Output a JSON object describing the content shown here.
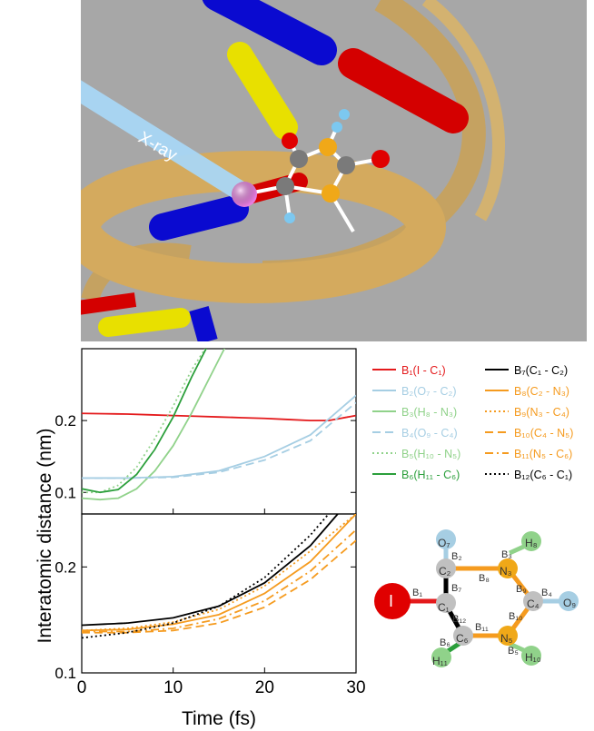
{
  "figure": {
    "xray_label": "X-ray",
    "ylabel": "Interatomic distance (nm)",
    "xlabel": "Time (fs)"
  },
  "legend": [
    {
      "label": "B₁(I  - C₁)",
      "color": "#e41a1c",
      "dash": "solid"
    },
    {
      "label": "B₇(C₁  - C₂)",
      "color": "#000000",
      "dash": "solid"
    },
    {
      "label": "B₂(O₇  - C₂)",
      "color": "#a6cee3",
      "dash": "solid"
    },
    {
      "label": "B₈(C₂  - N₃)",
      "color": "#f59b1f",
      "dash": "solid"
    },
    {
      "label": "B₃(H₈  - N₃)",
      "color": "#90d28a",
      "dash": "solid"
    },
    {
      "label": "B₉(N₃  - C₄)",
      "color": "#f59b1f",
      "dash": "dotted"
    },
    {
      "label": "B₄(O₉  - C₄)",
      "color": "#a6cee3",
      "dash": "dashed"
    },
    {
      "label": "B₁₀(C₄ - N₅)",
      "color": "#f59b1f",
      "dash": "dashed"
    },
    {
      "label": "B₅(H₁₀  - N₅)",
      "color": "#90d28a",
      "dash": "dotted"
    },
    {
      "label": "B₁₁(N₅ - C₆)",
      "color": "#f59b1f",
      "dash": "dashdot"
    },
    {
      "label": "B₆(H₁₁  - C₆)",
      "color": "#2b9f3b",
      "dash": "solid"
    },
    {
      "label": "B₁₂(C₆  - C₁)",
      "color": "#000000",
      "dash": "dotted"
    }
  ],
  "molecule": {
    "atoms": [
      "O₇",
      "H₈",
      "I",
      "O₉",
      "H₁₁",
      "H₁₀",
      "C₂",
      "N₃",
      "C₁",
      "C₄",
      "C₆",
      "N₅"
    ],
    "bonds": [
      "B₁",
      "B₂",
      "B₃",
      "B₄",
      "B₅",
      "B₆",
      "B₇",
      "B₈",
      "B₉",
      "B₁₀",
      "B₁₁",
      "B₁₂"
    ]
  },
  "chart_data": [
    {
      "type": "line",
      "xlim": [
        0,
        30
      ],
      "ylim": [
        0.07,
        0.3
      ],
      "yticks": [
        "0.1",
        "0.2"
      ],
      "series": [
        {
          "name": "B₁(I - C₁)",
          "x": [
            0,
            5,
            10,
            15,
            20,
            25,
            27,
            30
          ],
          "y": [
            0.21,
            0.209,
            0.207,
            0.205,
            0.203,
            0.2,
            0.2,
            0.207
          ]
        },
        {
          "name": "B₂(O₇ - C₂)",
          "x": [
            0,
            5,
            10,
            15,
            20,
            25,
            30
          ],
          "y": [
            0.12,
            0.12,
            0.122,
            0.13,
            0.15,
            0.18,
            0.235
          ]
        },
        {
          "name": "B₃(H₈ - N₃)",
          "x": [
            0,
            2,
            4,
            6,
            8,
            10,
            12,
            14,
            16
          ],
          "y": [
            0.092,
            0.09,
            0.092,
            0.105,
            0.13,
            0.165,
            0.21,
            0.26,
            0.31
          ]
        },
        {
          "name": "B₄(O₉ - C₄)",
          "x": [
            0,
            5,
            10,
            15,
            20,
            25,
            30
          ],
          "y": [
            0.12,
            0.12,
            0.121,
            0.128,
            0.145,
            0.172,
            0.225
          ]
        },
        {
          "name": "B₅(H₁₀ - N₅)",
          "x": [
            0,
            2,
            4,
            6,
            8,
            10,
            12,
            14
          ],
          "y": [
            0.1,
            0.1,
            0.11,
            0.135,
            0.175,
            0.22,
            0.27,
            0.31
          ]
        },
        {
          "name": "B₆(H₁₁ - C₆)",
          "x": [
            0,
            2,
            4,
            6,
            8,
            10,
            12,
            14
          ],
          "y": [
            0.105,
            0.1,
            0.104,
            0.125,
            0.16,
            0.205,
            0.26,
            0.31
          ]
        }
      ]
    },
    {
      "type": "line",
      "xlim": [
        0,
        30
      ],
      "ylim": [
        0.1,
        0.25
      ],
      "yticks": [
        "0.1",
        "0.2"
      ],
      "xticks": [
        "0",
        "10",
        "20",
        "30"
      ],
      "series": [
        {
          "name": "B₇(C₁ - C₂)",
          "x": [
            0,
            5,
            10,
            15,
            20,
            25,
            28
          ],
          "y": [
            0.145,
            0.147,
            0.152,
            0.163,
            0.185,
            0.22,
            0.25
          ]
        },
        {
          "name": "B₈(C₂ - N₃)",
          "x": [
            0,
            5,
            10,
            15,
            20,
            25,
            30
          ],
          "y": [
            0.14,
            0.141,
            0.146,
            0.155,
            0.175,
            0.205,
            0.25
          ]
        },
        {
          "name": "B₉(N₃ - C₄)",
          "x": [
            0,
            5,
            10,
            15,
            20,
            25,
            30
          ],
          "y": [
            0.14,
            0.142,
            0.148,
            0.16,
            0.182,
            0.215,
            0.25
          ]
        },
        {
          "name": "B₁₀(C₄ - N₅)",
          "x": [
            0,
            5,
            10,
            15,
            20,
            25,
            30
          ],
          "y": [
            0.138,
            0.138,
            0.14,
            0.147,
            0.162,
            0.188,
            0.225
          ]
        },
        {
          "name": "B₁₁(N₅ - C₆)",
          "x": [
            0,
            5,
            10,
            15,
            20,
            25,
            30
          ],
          "y": [
            0.139,
            0.139,
            0.142,
            0.151,
            0.168,
            0.196,
            0.235
          ]
        },
        {
          "name": "B₁₂(C₆ - C₁)",
          "x": [
            0,
            5,
            10,
            15,
            20,
            25,
            27
          ],
          "y": [
            0.133,
            0.138,
            0.147,
            0.163,
            0.19,
            0.23,
            0.25
          ]
        }
      ]
    }
  ]
}
